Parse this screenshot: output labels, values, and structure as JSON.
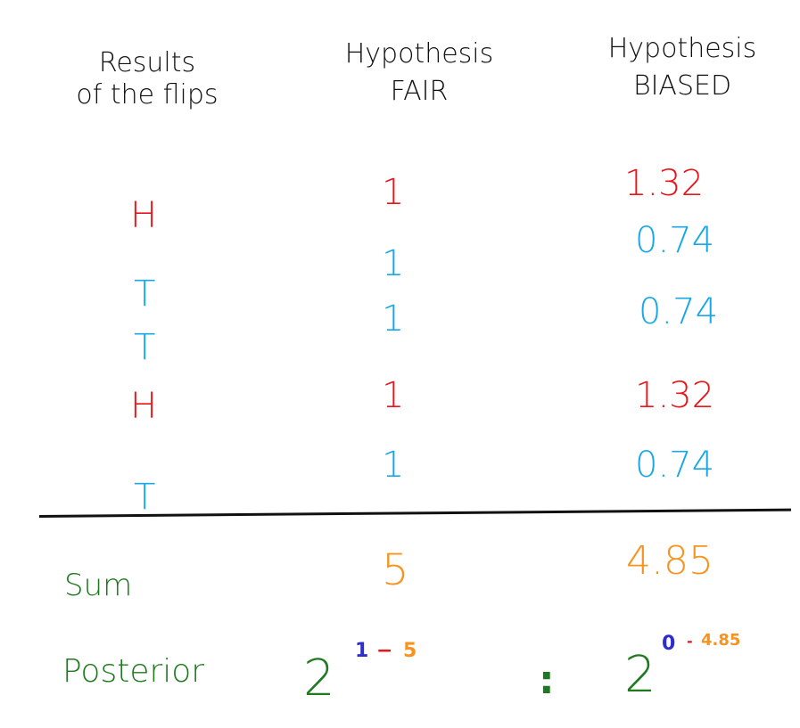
{
  "headers": {
    "results": [
      "Results",
      "of the flips"
    ],
    "fair": [
      "Hypothesis",
      "FAIR"
    ],
    "biased": [
      "Hypothesis",
      "BIASED"
    ]
  },
  "rows": [
    {
      "flip": "H",
      "fair": "1",
      "biased": "1.32"
    },
    {
      "flip": "T",
      "fair": "1",
      "biased": "0.74"
    },
    {
      "flip": "T",
      "fair": "1",
      "biased": "0.74"
    },
    {
      "flip": "H",
      "fair": "1",
      "biased": "1.32"
    },
    {
      "flip": "T",
      "fair": "1",
      "biased": "0.74"
    }
  ],
  "sum": {
    "label": "Sum",
    "fair": "5",
    "biased": "4.85"
  },
  "posterior": {
    "label": "Posterior",
    "fair_base": "2",
    "fair_exp_a": "1",
    "fair_exp_op": "−",
    "fair_exp_b": "5",
    "separator": ":",
    "biased_base": "2",
    "biased_exp_a": "0",
    "biased_exp_op": "-",
    "biased_exp_b": "4.85"
  },
  "colors": {
    "heads": "#e8161b",
    "tails": "#1aa7e8",
    "sum_values": "#f7931e",
    "green_labels": "#1f7a1f",
    "exp_a": "#2e2ecc",
    "exp_b": "#f7931e",
    "ink": "#111111"
  }
}
